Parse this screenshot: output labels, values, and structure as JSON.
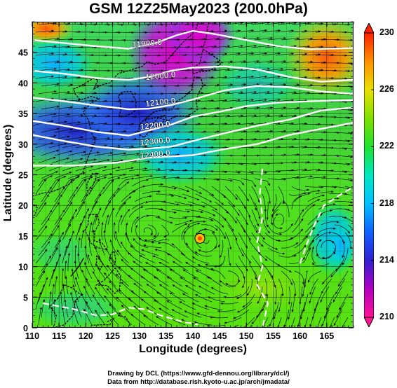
{
  "title": "GSM 12Z25May2023 (200.0hPa)",
  "map": {
    "x_axis_title": "Longitude (degrees)",
    "y_axis_title": "Latitude  (degrees)",
    "lon_range": [
      110,
      170
    ],
    "lat_range": [
      0,
      50
    ],
    "lon_ticks": [
      110,
      115,
      120,
      125,
      130,
      135,
      140,
      145,
      150,
      155,
      160,
      165
    ],
    "lat_ticks": [
      0,
      5,
      10,
      15,
      20,
      25,
      30,
      35,
      40,
      45
    ],
    "contour_labels": [
      "11900.0",
      "12000.0",
      "12100.0",
      "12200.0",
      "12300.0",
      "12400.0"
    ],
    "typhoon_position": {
      "lon": 141.3,
      "lat": 14.6
    }
  },
  "colorbar": {
    "min": 210,
    "max": 230,
    "labels": [
      "230",
      "226",
      "222",
      "218",
      "214",
      "210"
    ],
    "colors": [
      "#ff1493",
      "#b000c0",
      "#3020d0",
      "#1060ff",
      "#00c0ff",
      "#00e8c0",
      "#20e030",
      "#80e000",
      "#e8e000",
      "#ff9000",
      "#ff2000"
    ]
  },
  "credits": {
    "line1": "Drawing by DCL (https://www.gfd-dennou.org/library/dcl/)",
    "line2": "Data from http://database.rish.kyoto-u.ac.jp/arch/jmadata/"
  }
}
